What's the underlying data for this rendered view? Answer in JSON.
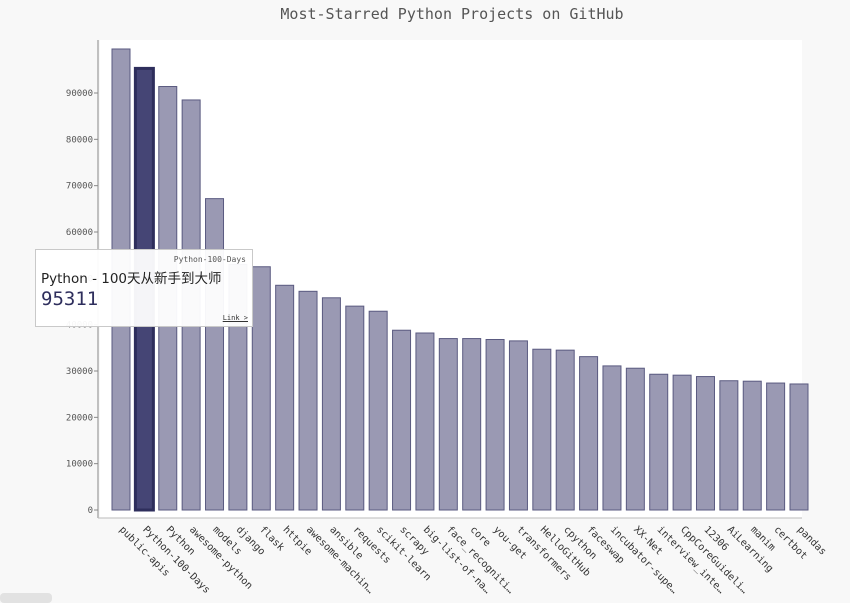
{
  "chart_data": {
    "type": "bar",
    "title": "Most-Starred Python Projects on GitHub",
    "xlabel": "",
    "ylabel": "",
    "ylim": [
      0,
      95000
    ],
    "yticks": [
      0,
      10000,
      20000,
      30000,
      40000,
      50000,
      60000,
      70000,
      80000,
      90000
    ],
    "grid": false,
    "categories": [
      "public-apis",
      "Python-100-Days",
      "Python",
      "awesome-python",
      "models",
      "django",
      "flask",
      "httpie",
      "awesome-machin…",
      "ansible",
      "requests",
      "scikit-learn",
      "scrapy",
      "big-list-of-na…",
      "face_recogniti…",
      "core",
      "you-get",
      "transformers",
      "HelloGitHub",
      "cpython",
      "faceswap",
      "incubator-supe…",
      "XX-Net",
      "interview_inte…",
      "CppCoreGuideli…",
      "12306",
      "AiLearning",
      "manim",
      "certbot",
      "pandas"
    ],
    "values": [
      99500,
      95311,
      91400,
      88500,
      67200,
      53000,
      52500,
      48500,
      47200,
      45800,
      44000,
      42900,
      38800,
      38200,
      37000,
      37000,
      36800,
      36500,
      34700,
      34500,
      33100,
      31100,
      30600,
      29300,
      29100,
      28800,
      27900,
      27800,
      27400,
      27200
    ],
    "highlight_index": 1,
    "bar_color": "#9a99b3",
    "bar_stroke": "#5a5a80",
    "highlight_color": "#454575"
  },
  "tooltip": {
    "x_label": "Python-100-Days",
    "label": "Python - 100天从新手到大师",
    "value": "95311",
    "link_text": "Link >"
  }
}
